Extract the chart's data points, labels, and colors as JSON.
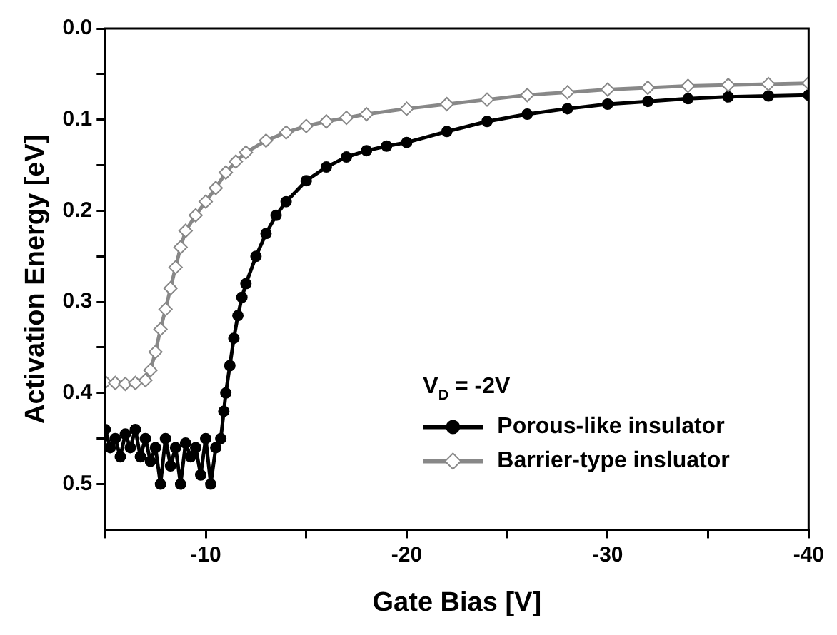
{
  "chart_data": {
    "type": "line",
    "xlabel": "Gate Bias [V]",
    "ylabel": "Activation Energy [eV]",
    "legend_title": "V$_{D}$ = -2V",
    "legend": "bottom right",
    "grid": false,
    "line_style": "solid",
    "xlim": [
      -5,
      -40
    ],
    "xticks": [
      {
        "value": -5,
        "label": null
      },
      -10,
      {
        "value": -15,
        "label": null
      },
      -20,
      {
        "value": -25,
        "label": null
      },
      -30,
      {
        "value": -35,
        "label": null
      },
      -40
    ],
    "ylim": [
      0.55,
      0
    ],
    "yticks": [
      "0.0",
      {
        "value": 0.05,
        "label": null
      },
      0.1,
      {
        "value": 0.15,
        "label": null
      },
      0.2,
      {
        "value": 0.25,
        "label": null
      },
      0.3,
      {
        "value": 0.35,
        "label": null
      },
      0.4,
      {
        "value": 0.45,
        "label": null
      },
      0.5
    ],
    "series": [
      {
        "name": "Porous-like insulator",
        "color": "#000000",
        "marker": "circle",
        "x": [
          -5,
          -5.25,
          -5.5,
          -5.75,
          -6,
          -6.25,
          -6.5,
          -6.75,
          -7,
          -7.25,
          -7.5,
          -7.75,
          -8,
          -8.25,
          -8.5,
          -8.75,
          -9,
          -9.25,
          -9.5,
          -9.75,
          -10,
          -10.25,
          -10.5,
          -10.75,
          -10.9,
          -11,
          -11.2,
          -11.4,
          -11.6,
          -11.8,
          -12,
          -12.5,
          -13,
          -13.5,
          -14,
          -15,
          -16,
          -17,
          -18,
          -19,
          -20,
          -22,
          -24,
          -26,
          -28,
          -30,
          -32,
          -34,
          -36,
          -38,
          -40
        ],
        "values": [
          0.44,
          0.46,
          0.45,
          0.47,
          0.445,
          0.46,
          0.44,
          0.47,
          0.45,
          0.475,
          0.46,
          0.5,
          0.45,
          0.48,
          0.46,
          0.5,
          0.455,
          0.47,
          0.46,
          0.49,
          0.45,
          0.5,
          0.46,
          0.45,
          0.42,
          0.4,
          0.37,
          0.34,
          0.315,
          0.295,
          0.28,
          0.25,
          0.225,
          0.205,
          0.19,
          0.167,
          0.152,
          0.141,
          0.134,
          0.129,
          0.125,
          0.113,
          0.102,
          0.094,
          0.088,
          0.083,
          0.08,
          0.077,
          0.075,
          0.074,
          0.073
        ]
      },
      {
        "name": "Barrier-type insluator",
        "color": "#888888",
        "marker": "diamond",
        "x": [
          -5,
          -5.5,
          -6,
          -6.5,
          -7,
          -7.25,
          -7.5,
          -7.75,
          -8,
          -8.25,
          -8.5,
          -8.75,
          -9,
          -9.5,
          -10,
          -10.5,
          -11,
          -11.5,
          -12,
          -13,
          -14,
          -15,
          -16,
          -17,
          -18,
          -20,
          -22,
          -24,
          -26,
          -28,
          -30,
          -32,
          -34,
          -36,
          -38,
          -40
        ],
        "values": [
          0.388,
          0.389,
          0.39,
          0.389,
          0.386,
          0.375,
          0.355,
          0.33,
          0.308,
          0.285,
          0.262,
          0.24,
          0.222,
          0.205,
          0.19,
          0.175,
          0.158,
          0.146,
          0.136,
          0.123,
          0.114,
          0.107,
          0.102,
          0.098,
          0.094,
          0.088,
          0.083,
          0.078,
          0.073,
          0.07,
          0.067,
          0.065,
          0.063,
          0.062,
          0.061,
          0.06
        ]
      }
    ]
  }
}
